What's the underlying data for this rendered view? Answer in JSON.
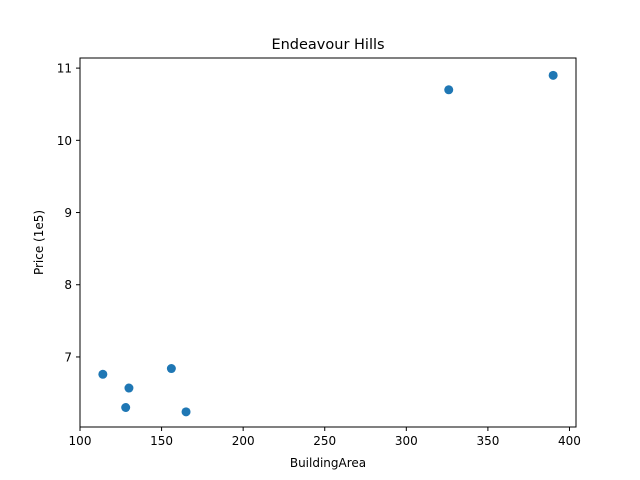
{
  "chart_data": {
    "type": "scatter",
    "title": "Endeavour Hills",
    "xlabel": "BuildingArea",
    "ylabel": "Price (1e5)",
    "xlim": [
      100,
      404
    ],
    "ylim": [
      6.03,
      11.14
    ],
    "xticks": [
      100,
      150,
      200,
      250,
      300,
      350,
      400
    ],
    "yticks": [
      7,
      8,
      9,
      10,
      11
    ],
    "grid": false,
    "color": "#1f77b4",
    "points": [
      {
        "x": 114,
        "y": 6.76
      },
      {
        "x": 128,
        "y": 6.3
      },
      {
        "x": 130,
        "y": 6.57
      },
      {
        "x": 156,
        "y": 6.84
      },
      {
        "x": 165,
        "y": 6.24
      },
      {
        "x": 326,
        "y": 10.7
      },
      {
        "x": 390,
        "y": 10.9
      }
    ]
  }
}
